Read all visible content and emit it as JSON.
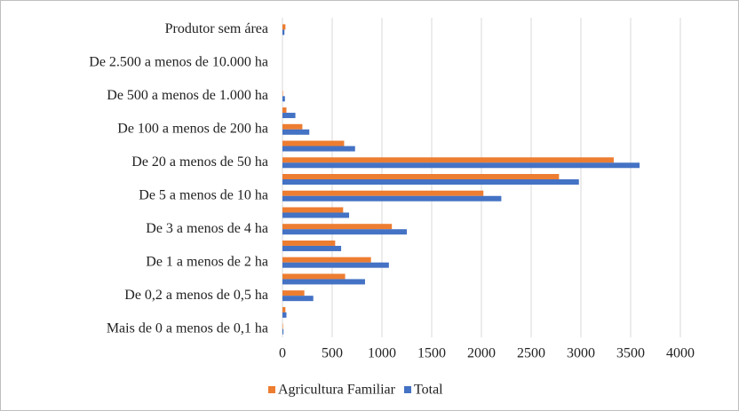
{
  "chart_data": {
    "type": "hbar",
    "categories": [
      "Produtor sem área",
      null,
      "De 2.500 a menos de 10.000 ha",
      null,
      "De 500 a menos de 1.000 ha",
      null,
      "De 100 a menos de 200 ha",
      null,
      "De 20 a menos de 50 ha",
      null,
      "De 5 a menos de 10 ha",
      null,
      "De 3 a menos de 4 ha",
      null,
      "De 1 a menos de 2 ha",
      null,
      "De 0,2 a menos de 0,5 ha",
      null,
      "Mais de 0 a menos de 0,1 ha"
    ],
    "series": [
      {
        "name": "Agricultura Familiar",
        "color": "#ed7d31",
        "values": [
          30,
          0,
          0,
          0,
          5,
          40,
          200,
          620,
          3330,
          2780,
          2020,
          610,
          1100,
          530,
          890,
          630,
          220,
          30,
          5
        ]
      },
      {
        "name": "Total",
        "color": "#4472c4",
        "values": [
          20,
          0,
          0,
          0,
          25,
          130,
          270,
          730,
          3590,
          2980,
          2200,
          670,
          1250,
          590,
          1070,
          830,
          310,
          40,
          10
        ]
      }
    ],
    "xlim": [
      0,
      4000
    ],
    "xticks": [
      0,
      500,
      1000,
      1500,
      2000,
      2500,
      3000,
      3500,
      4000
    ],
    "grid": true,
    "legend": "bottom"
  }
}
